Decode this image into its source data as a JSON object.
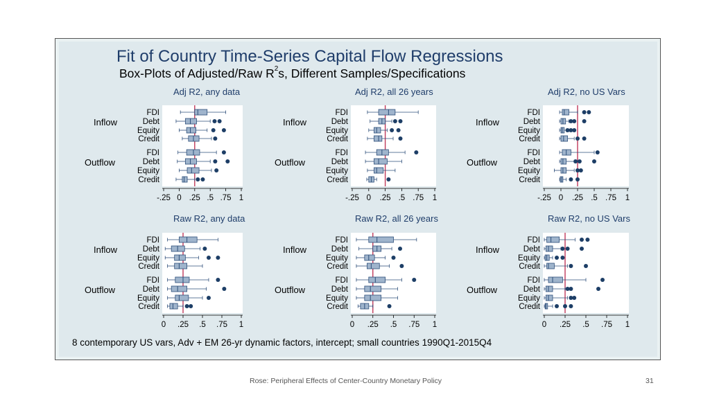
{
  "slide": {
    "title": "Fit of Country Time-Series Capital Flow Regressions",
    "subtitle_pre": "Box-Plots of Adjusted/Raw R",
    "subtitle_sup": "2",
    "subtitle_post": "s, Different Samples/Specifications",
    "note": "8 contemporary US vars, Adv + EM 26-yr dynamic factors, intercept; small countries 1990Q1-2015Q4",
    "footer": "Rose: Peripheral Effects of Center-Country Monetary Policy",
    "page_number": "31"
  },
  "colors": {
    "box": "#9fb4cc",
    "box_edge": "#2e4f7a",
    "outlier": "#1d3e66",
    "refline": "#c0395a",
    "title": "#1f3d6a"
  },
  "groups": [
    "Inflow",
    "Outflow"
  ],
  "flows": [
    "FDI",
    "Debt",
    "Equity",
    "Credit"
  ],
  "chart_data": [
    {
      "type": "boxplot",
      "title": "Adj R2, any data",
      "xlim": [
        -0.25,
        1
      ],
      "ticks": [
        -0.25,
        0,
        0.25,
        0.5,
        0.75,
        1
      ],
      "tick_labels": [
        "-.25",
        "0",
        ".25",
        ".5",
        ".75",
        "1"
      ],
      "reference_line": 0.25,
      "boxes": [
        {
          "group": "Inflow",
          "flow": "FDI",
          "whisker_low": 0.02,
          "q1": 0.25,
          "median": 0.3,
          "q3": 0.45,
          "whisker_high": 0.75,
          "outliers": []
        },
        {
          "group": "Inflow",
          "flow": "Debt",
          "whisker_low": -0.05,
          "q1": 0.1,
          "median": 0.18,
          "q3": 0.28,
          "whisker_high": 0.5,
          "outliers": [
            0.57,
            0.65
          ]
        },
        {
          "group": "Inflow",
          "flow": "Equity",
          "whisker_low": 0.0,
          "q1": 0.12,
          "median": 0.18,
          "q3": 0.27,
          "whisker_high": 0.45,
          "outliers": [
            0.55,
            0.72
          ]
        },
        {
          "group": "Inflow",
          "flow": "Credit",
          "whisker_low": 0.05,
          "q1": 0.15,
          "median": 0.23,
          "q3": 0.32,
          "whisker_high": 0.52,
          "outliers": [
            0.58
          ]
        },
        {
          "group": "Outflow",
          "flow": "FDI",
          "whisker_low": -0.02,
          "q1": 0.12,
          "median": 0.23,
          "q3": 0.33,
          "whisker_high": 0.6,
          "outliers": [
            0.72
          ]
        },
        {
          "group": "Outflow",
          "flow": "Debt",
          "whisker_low": -0.03,
          "q1": 0.1,
          "median": 0.18,
          "q3": 0.28,
          "whisker_high": 0.5,
          "outliers": [
            0.58,
            0.78
          ]
        },
        {
          "group": "Outflow",
          "flow": "Equity",
          "whisker_low": 0.0,
          "q1": 0.13,
          "median": 0.2,
          "q3": 0.32,
          "whisker_high": 0.52,
          "outliers": [
            0.6
          ]
        },
        {
          "group": "Outflow",
          "flow": "Credit",
          "whisker_low": -0.05,
          "q1": 0.05,
          "median": 0.08,
          "q3": 0.13,
          "whisker_high": 0.25,
          "outliers": [
            0.3,
            0.38
          ]
        }
      ]
    },
    {
      "type": "boxplot",
      "title": "Adj R2, all 26 years",
      "xlim": [
        -0.25,
        1
      ],
      "ticks": [
        -0.25,
        0,
        0.25,
        0.5,
        0.75,
        1
      ],
      "tick_labels": [
        "-.25",
        "0",
        ".25",
        ".5",
        ".75",
        "1"
      ],
      "reference_line": 0.25,
      "boxes": [
        {
          "group": "Inflow",
          "flow": "FDI",
          "whisker_low": -0.02,
          "q1": 0.15,
          "median": 0.3,
          "q3": 0.4,
          "whisker_high": 0.75,
          "outliers": []
        },
        {
          "group": "Inflow",
          "flow": "Debt",
          "whisker_low": 0.02,
          "q1": 0.15,
          "median": 0.2,
          "q3": 0.25,
          "whisker_high": 0.35,
          "outliers": [
            0.4,
            0.48
          ]
        },
        {
          "group": "Inflow",
          "flow": "Equity",
          "whisker_low": 0.0,
          "q1": 0.08,
          "median": 0.12,
          "q3": 0.18,
          "whisker_high": 0.28,
          "outliers": [
            0.35,
            0.45
          ]
        },
        {
          "group": "Inflow",
          "flow": "Credit",
          "whisker_low": -0.02,
          "q1": 0.08,
          "median": 0.15,
          "q3": 0.2,
          "whisker_high": 0.37,
          "outliers": [
            0.48
          ]
        },
        {
          "group": "Outflow",
          "flow": "FDI",
          "whisker_low": -0.05,
          "q1": 0.12,
          "median": 0.2,
          "q3": 0.3,
          "whisker_high": 0.55,
          "outliers": [
            0.72
          ]
        },
        {
          "group": "Outflow",
          "flow": "Debt",
          "whisker_low": -0.05,
          "q1": 0.08,
          "median": 0.15,
          "q3": 0.28,
          "whisker_high": 0.5,
          "outliers": []
        },
        {
          "group": "Outflow",
          "flow": "Equity",
          "whisker_low": -0.02,
          "q1": 0.08,
          "median": 0.12,
          "q3": 0.22,
          "whisker_high": 0.4,
          "outliers": []
        },
        {
          "group": "Outflow",
          "flow": "Credit",
          "whisker_low": -0.03,
          "q1": 0.0,
          "median": 0.04,
          "q3": 0.08,
          "whisker_high": 0.12,
          "outliers": [
            0.3
          ]
        }
      ]
    },
    {
      "type": "boxplot",
      "title": "Adj R2, no US Vars",
      "xlim": [
        -0.25,
        1
      ],
      "ticks": [
        -0.25,
        0,
        0.25,
        0.5,
        0.75,
        1
      ],
      "tick_labels": [
        "-.25",
        "0",
        ".25",
        ".5",
        ".75",
        "1"
      ],
      "reference_line": 0.25,
      "boxes": [
        {
          "group": "Inflow",
          "flow": "FDI",
          "whisker_low": -0.02,
          "q1": 0.02,
          "median": 0.05,
          "q3": 0.12,
          "whisker_high": 0.25,
          "outliers": [
            0.35,
            0.42
          ]
        },
        {
          "group": "Inflow",
          "flow": "Debt",
          "whisker_low": -0.02,
          "q1": 0.0,
          "median": 0.03,
          "q3": 0.07,
          "whisker_high": 0.12,
          "outliers": [
            0.15,
            0.2,
            0.35
          ]
        },
        {
          "group": "Inflow",
          "flow": "Equity",
          "whisker_low": -0.02,
          "q1": 0.0,
          "median": 0.02,
          "q3": 0.05,
          "whisker_high": 0.08,
          "outliers": [
            0.1,
            0.15,
            0.2
          ]
        },
        {
          "group": "Inflow",
          "flow": "Credit",
          "whisker_low": -0.02,
          "q1": 0.0,
          "median": 0.04,
          "q3": 0.1,
          "whisker_high": 0.2,
          "outliers": [
            0.25,
            0.35
          ]
        },
        {
          "group": "Outflow",
          "flow": "FDI",
          "whisker_low": -0.02,
          "q1": 0.02,
          "median": 0.08,
          "q3": 0.15,
          "whisker_high": 0.5,
          "outliers": [
            0.55
          ]
        },
        {
          "group": "Outflow",
          "flow": "Debt",
          "whisker_low": -0.02,
          "q1": 0.0,
          "median": 0.03,
          "q3": 0.08,
          "whisker_high": 0.2,
          "outliers": [
            0.22,
            0.28,
            0.5
          ]
        },
        {
          "group": "Outflow",
          "flow": "Equity",
          "whisker_low": -0.1,
          "q1": 0.0,
          "median": 0.03,
          "q3": 0.08,
          "whisker_high": 0.2,
          "outliers": [
            0.25,
            0.3
          ]
        },
        {
          "group": "Outflow",
          "flow": "Credit",
          "whisker_low": -0.02,
          "q1": -0.01,
          "median": 0.01,
          "q3": 0.03,
          "whisker_high": 0.08,
          "outliers": [
            0.15,
            0.25
          ]
        }
      ]
    },
    {
      "type": "boxplot",
      "title": "Raw R2, any data",
      "xlim": [
        0,
        1
      ],
      "ticks": [
        0,
        0.25,
        0.5,
        0.75,
        1
      ],
      "tick_labels": [
        "0",
        ".25",
        ".5",
        ".75",
        "1"
      ],
      "reference_line": 0.25,
      "boxes": [
        {
          "group": "Inflow",
          "flow": "FDI",
          "whisker_low": 0.05,
          "q1": 0.2,
          "median": 0.3,
          "q3": 0.43,
          "whisker_high": 0.7,
          "outliers": []
        },
        {
          "group": "Inflow",
          "flow": "Debt",
          "whisker_low": 0.02,
          "q1": 0.1,
          "median": 0.18,
          "q3": 0.27,
          "whisker_high": 0.47,
          "outliers": [
            0.53
          ]
        },
        {
          "group": "Inflow",
          "flow": "Equity",
          "whisker_low": 0.02,
          "q1": 0.14,
          "median": 0.2,
          "q3": 0.28,
          "whisker_high": 0.45,
          "outliers": [
            0.58,
            0.7
          ]
        },
        {
          "group": "Inflow",
          "flow": "Credit",
          "whisker_low": 0.05,
          "q1": 0.14,
          "median": 0.2,
          "q3": 0.3,
          "whisker_high": 0.5,
          "outliers": []
        },
        {
          "group": "Outflow",
          "flow": "FDI",
          "whisker_low": 0.05,
          "q1": 0.15,
          "median": 0.25,
          "q3": 0.33,
          "whisker_high": 0.58,
          "outliers": [
            0.7
          ]
        },
        {
          "group": "Outflow",
          "flow": "Debt",
          "whisker_low": 0.05,
          "q1": 0.1,
          "median": 0.18,
          "q3": 0.3,
          "whisker_high": 0.55,
          "outliers": [
            0.78
          ]
        },
        {
          "group": "Outflow",
          "flow": "Equity",
          "whisker_low": 0.05,
          "q1": 0.15,
          "median": 0.2,
          "q3": 0.32,
          "whisker_high": 0.5,
          "outliers": [
            0.58
          ]
        },
        {
          "group": "Outflow",
          "flow": "Credit",
          "whisker_low": 0.05,
          "q1": 0.08,
          "median": 0.12,
          "q3": 0.18,
          "whisker_high": 0.25,
          "outliers": [
            0.3,
            0.35
          ]
        }
      ]
    },
    {
      "type": "boxplot",
      "title": "Raw R2, all 26 years",
      "xlim": [
        0,
        1
      ],
      "ticks": [
        0,
        0.25,
        0.5,
        0.75,
        1
      ],
      "tick_labels": [
        "0",
        ".25",
        ".5",
        ".75",
        "1"
      ],
      "reference_line": 0.25,
      "boxes": [
        {
          "group": "Inflow",
          "flow": "FDI",
          "whisker_low": 0.05,
          "q1": 0.2,
          "median": 0.3,
          "q3": 0.5,
          "whisker_high": 0.78,
          "outliers": []
        },
        {
          "group": "Inflow",
          "flow": "Debt",
          "whisker_low": 0.08,
          "q1": 0.25,
          "median": 0.3,
          "q3": 0.35,
          "whisker_high": 0.48,
          "outliers": [
            0.58
          ]
        },
        {
          "group": "Inflow",
          "flow": "Equity",
          "whisker_low": 0.05,
          "q1": 0.15,
          "median": 0.2,
          "q3": 0.27,
          "whisker_high": 0.4,
          "outliers": [
            0.5
          ]
        },
        {
          "group": "Inflow",
          "flow": "Credit",
          "whisker_low": 0.05,
          "q1": 0.18,
          "median": 0.23,
          "q3": 0.33,
          "whisker_high": 0.45,
          "outliers": [
            0.6
          ]
        },
        {
          "group": "Outflow",
          "flow": "FDI",
          "whisker_low": 0.05,
          "q1": 0.2,
          "median": 0.28,
          "q3": 0.4,
          "whisker_high": 0.6,
          "outliers": [
            0.75
          ]
        },
        {
          "group": "Outflow",
          "flow": "Debt",
          "whisker_low": 0.05,
          "q1": 0.15,
          "median": 0.22,
          "q3": 0.35,
          "whisker_high": 0.55,
          "outliers": []
        },
        {
          "group": "Outflow",
          "flow": "Equity",
          "whisker_low": 0.05,
          "q1": 0.15,
          "median": 0.22,
          "q3": 0.35,
          "whisker_high": 0.55,
          "outliers": []
        },
        {
          "group": "Outflow",
          "flow": "Credit",
          "whisker_low": 0.07,
          "q1": 0.1,
          "median": 0.15,
          "q3": 0.2,
          "whisker_high": 0.25,
          "outliers": [
            0.45
          ]
        }
      ]
    },
    {
      "type": "boxplot",
      "title": "Raw R2, no US Vars",
      "xlim": [
        0,
        1
      ],
      "ticks": [
        0,
        0.25,
        0.5,
        0.75,
        1
      ],
      "tick_labels": [
        "0",
        ".25",
        ".5",
        ".75",
        "1"
      ],
      "reference_line": 0.25,
      "boxes": [
        {
          "group": "Inflow",
          "flow": "FDI",
          "whisker_low": 0.0,
          "q1": 0.03,
          "median": 0.08,
          "q3": 0.18,
          "whisker_high": 0.37,
          "outliers": [
            0.45,
            0.52
          ]
        },
        {
          "group": "Inflow",
          "flow": "Debt",
          "whisker_low": 0.0,
          "q1": 0.02,
          "median": 0.05,
          "q3": 0.1,
          "whisker_high": 0.2,
          "outliers": [
            0.22,
            0.28,
            0.45
          ]
        },
        {
          "group": "Inflow",
          "flow": "Equity",
          "whisker_low": 0.0,
          "q1": 0.01,
          "median": 0.03,
          "q3": 0.06,
          "whisker_high": 0.1,
          "outliers": [
            0.15,
            0.22
          ]
        },
        {
          "group": "Inflow",
          "flow": "Credit",
          "whisker_low": 0.0,
          "q1": 0.03,
          "median": 0.05,
          "q3": 0.12,
          "whisker_high": 0.28,
          "outliers": [
            0.32,
            0.5
          ]
        },
        {
          "group": "Outflow",
          "flow": "FDI",
          "whisker_low": 0.0,
          "q1": 0.05,
          "median": 0.1,
          "q3": 0.22,
          "whisker_high": 0.5,
          "outliers": [
            0.7
          ]
        },
        {
          "group": "Outflow",
          "flow": "Debt",
          "whisker_low": 0.0,
          "q1": 0.02,
          "median": 0.05,
          "q3": 0.1,
          "whisker_high": 0.25,
          "outliers": [
            0.28,
            0.32,
            0.65
          ]
        },
        {
          "group": "Outflow",
          "flow": "Equity",
          "whisker_low": 0.0,
          "q1": 0.02,
          "median": 0.05,
          "q3": 0.1,
          "whisker_high": 0.28,
          "outliers": [
            0.32,
            0.36
          ]
        },
        {
          "group": "Outflow",
          "flow": "Credit",
          "whisker_low": 0.0,
          "q1": 0.01,
          "median": 0.02,
          "q3": 0.04,
          "whisker_high": 0.1,
          "outliers": [
            0.15,
            0.25,
            0.32
          ]
        }
      ]
    }
  ]
}
